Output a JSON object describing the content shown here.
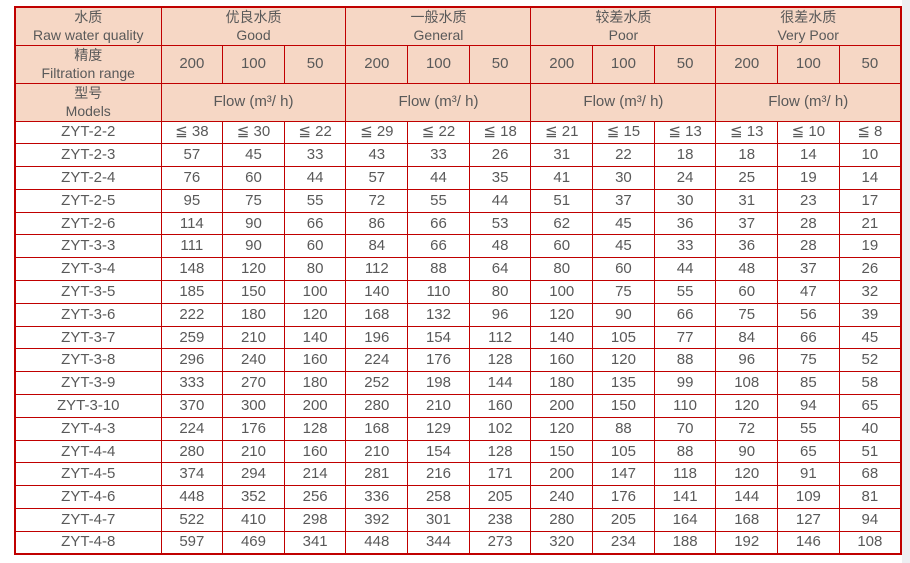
{
  "colors": {
    "header_bg": "#f6d7c5",
    "border_red": "#c00000",
    "text_gray": "#595959",
    "page_edge_gray": "#edeff2"
  },
  "chart_data": {
    "type": "table",
    "header": {
      "row1_label": {
        "zh": "水质",
        "en": "Raw water quality"
      },
      "row2_label": {
        "zh": "精度",
        "en": "Filtration range"
      },
      "row3_label": {
        "zh": "型号",
        "en": "Models"
      },
      "quality_groups": [
        {
          "zh": "优良水质",
          "en": "Good"
        },
        {
          "zh": "一般水质",
          "en": "General"
        },
        {
          "zh": "较差水质",
          "en": "Poor"
        },
        {
          "zh": "很差水质",
          "en": "Very Poor"
        }
      ],
      "filtration_range_values": [
        "200",
        "100",
        "50"
      ],
      "flow_label": "Flow (m³/ h)"
    },
    "rows": [
      {
        "model": "ZYT-2-2",
        "values": [
          "≦ 38",
          "≦ 30",
          "≦ 22",
          "≦ 29",
          "≦ 22",
          "≦ 18",
          "≦ 21",
          "≦ 15",
          "≦ 13",
          "≦ 13",
          "≦ 10",
          "≦ 8"
        ]
      },
      {
        "model": "ZYT-2-3",
        "values": [
          "57",
          "45",
          "33",
          "43",
          "33",
          "26",
          "31",
          "22",
          "18",
          "18",
          "14",
          "10"
        ]
      },
      {
        "model": "ZYT-2-4",
        "values": [
          "76",
          "60",
          "44",
          "57",
          "44",
          "35",
          "41",
          "30",
          "24",
          "25",
          "19",
          "14"
        ]
      },
      {
        "model": "ZYT-2-5",
        "values": [
          "95",
          "75",
          "55",
          "72",
          "55",
          "44",
          "51",
          "37",
          "30",
          "31",
          "23",
          "17"
        ]
      },
      {
        "model": "ZYT-2-6",
        "values": [
          "114",
          "90",
          "66",
          "86",
          "66",
          "53",
          "62",
          "45",
          "36",
          "37",
          "28",
          "21"
        ]
      },
      {
        "model": "ZYT-3-3",
        "values": [
          "111",
          "90",
          "60",
          "84",
          "66",
          "48",
          "60",
          "45",
          "33",
          "36",
          "28",
          "19"
        ]
      },
      {
        "model": "ZYT-3-4",
        "values": [
          "148",
          "120",
          "80",
          "112",
          "88",
          "64",
          "80",
          "60",
          "44",
          "48",
          "37",
          "26"
        ]
      },
      {
        "model": "ZYT-3-5",
        "values": [
          "185",
          "150",
          "100",
          "140",
          "110",
          "80",
          "100",
          "75",
          "55",
          "60",
          "47",
          "32"
        ]
      },
      {
        "model": "ZYT-3-6",
        "values": [
          "222",
          "180",
          "120",
          "168",
          "132",
          "96",
          "120",
          "90",
          "66",
          "75",
          "56",
          "39"
        ]
      },
      {
        "model": "ZYT-3-7",
        "values": [
          "259",
          "210",
          "140",
          "196",
          "154",
          "112",
          "140",
          "105",
          "77",
          "84",
          "66",
          "45"
        ]
      },
      {
        "model": "ZYT-3-8",
        "values": [
          "296",
          "240",
          "160",
          "224",
          "176",
          "128",
          "160",
          "120",
          "88",
          "96",
          "75",
          "52"
        ]
      },
      {
        "model": "ZYT-3-9",
        "values": [
          "333",
          "270",
          "180",
          "252",
          "198",
          "144",
          "180",
          "135",
          "99",
          "108",
          "85",
          "58"
        ]
      },
      {
        "model": "ZYT-3-10",
        "values": [
          "370",
          "300",
          "200",
          "280",
          "210",
          "160",
          "200",
          "150",
          "110",
          "120",
          "94",
          "65"
        ]
      },
      {
        "model": "ZYT-4-3",
        "values": [
          "224",
          "176",
          "128",
          "168",
          "129",
          "102",
          "120",
          "88",
          "70",
          "72",
          "55",
          "40"
        ]
      },
      {
        "model": "ZYT-4-4",
        "values": [
          "280",
          "210",
          "160",
          "210",
          "154",
          "128",
          "150",
          "105",
          "88",
          "90",
          "65",
          "51"
        ]
      },
      {
        "model": "ZYT-4-5",
        "values": [
          "374",
          "294",
          "214",
          "281",
          "216",
          "171",
          "200",
          "147",
          "118",
          "120",
          "91",
          "68"
        ]
      },
      {
        "model": "ZYT-4-6",
        "values": [
          "448",
          "352",
          "256",
          "336",
          "258",
          "205",
          "240",
          "176",
          "141",
          "144",
          "109",
          "81"
        ]
      },
      {
        "model": "ZYT-4-7",
        "values": [
          "522",
          "410",
          "298",
          "392",
          "301",
          "238",
          "280",
          "205",
          "164",
          "168",
          "127",
          "94"
        ]
      },
      {
        "model": "ZYT-4-8",
        "values": [
          "597",
          "469",
          "341",
          "448",
          "344",
          "273",
          "320",
          "234",
          "188",
          "192",
          "146",
          "108"
        ]
      }
    ]
  }
}
